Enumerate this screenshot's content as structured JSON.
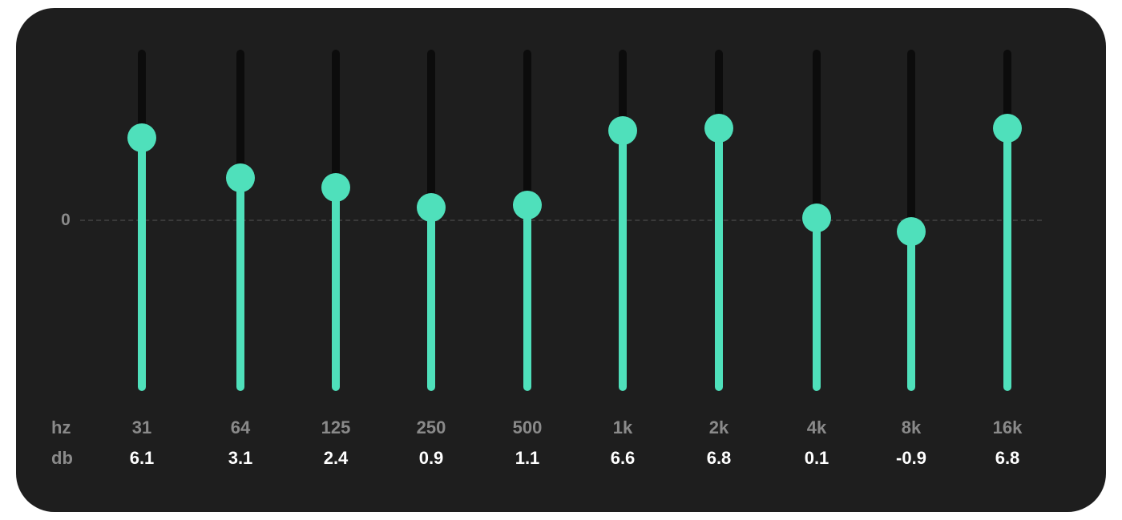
{
  "equalizer": {
    "zero_label": "0",
    "hz_title": "hz",
    "db_title": "db",
    "accent_color": "#4fe0bb",
    "track_color": "#0c0c0c",
    "panel_color": "#1e1e1e",
    "bands": [
      {
        "hz": "31",
        "db": "6.1"
      },
      {
        "hz": "64",
        "db": "3.1"
      },
      {
        "hz": "125",
        "db": "2.4"
      },
      {
        "hz": "250",
        "db": "0.9"
      },
      {
        "hz": "500",
        "db": "1.1"
      },
      {
        "hz": "1k",
        "db": "6.6"
      },
      {
        "hz": "2k",
        "db": "6.8"
      },
      {
        "hz": "4k",
        "db": "0.1"
      },
      {
        "hz": "8k",
        "db": "-0.9"
      },
      {
        "hz": "16k",
        "db": "6.8"
      }
    ]
  }
}
